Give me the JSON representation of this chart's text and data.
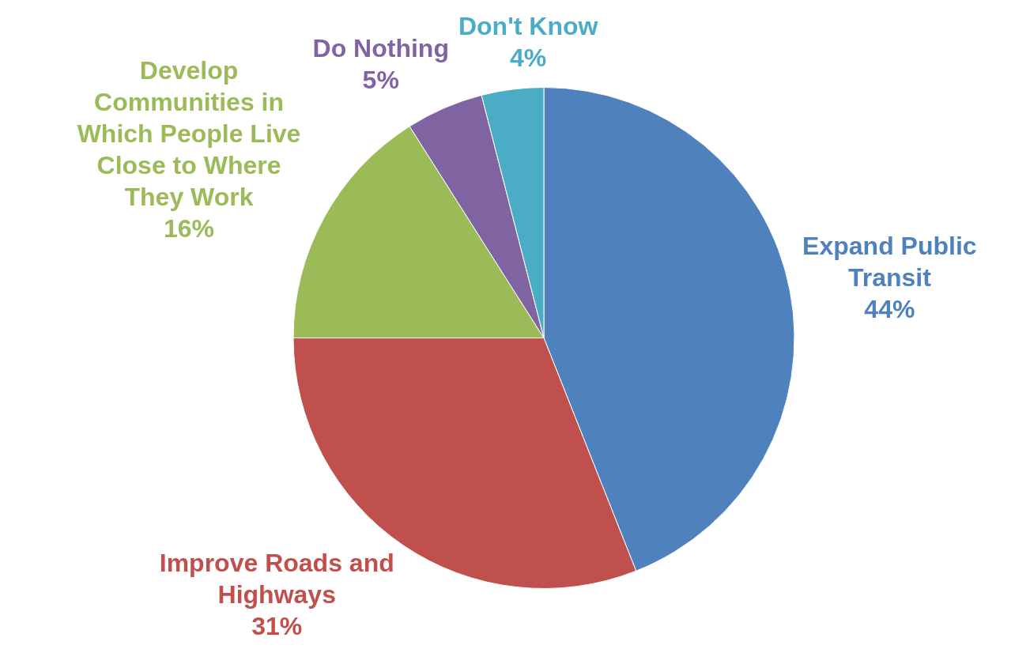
{
  "chart_data": {
    "type": "pie",
    "categories": [
      "Expand Public Transit",
      "Improve Roads and Highways",
      "Develop Communities in Which People Live Close to Where They Work",
      "Do Nothing",
      "Don't Know"
    ],
    "values": [
      44,
      31,
      16,
      5,
      4
    ],
    "colors": [
      "#4f81bd",
      "#c0504d",
      "#9bbb59",
      "#8064a2",
      "#4bacc6"
    ],
    "value_labels": [
      "44%",
      "31%",
      "16%",
      "5%",
      "4%"
    ]
  }
}
